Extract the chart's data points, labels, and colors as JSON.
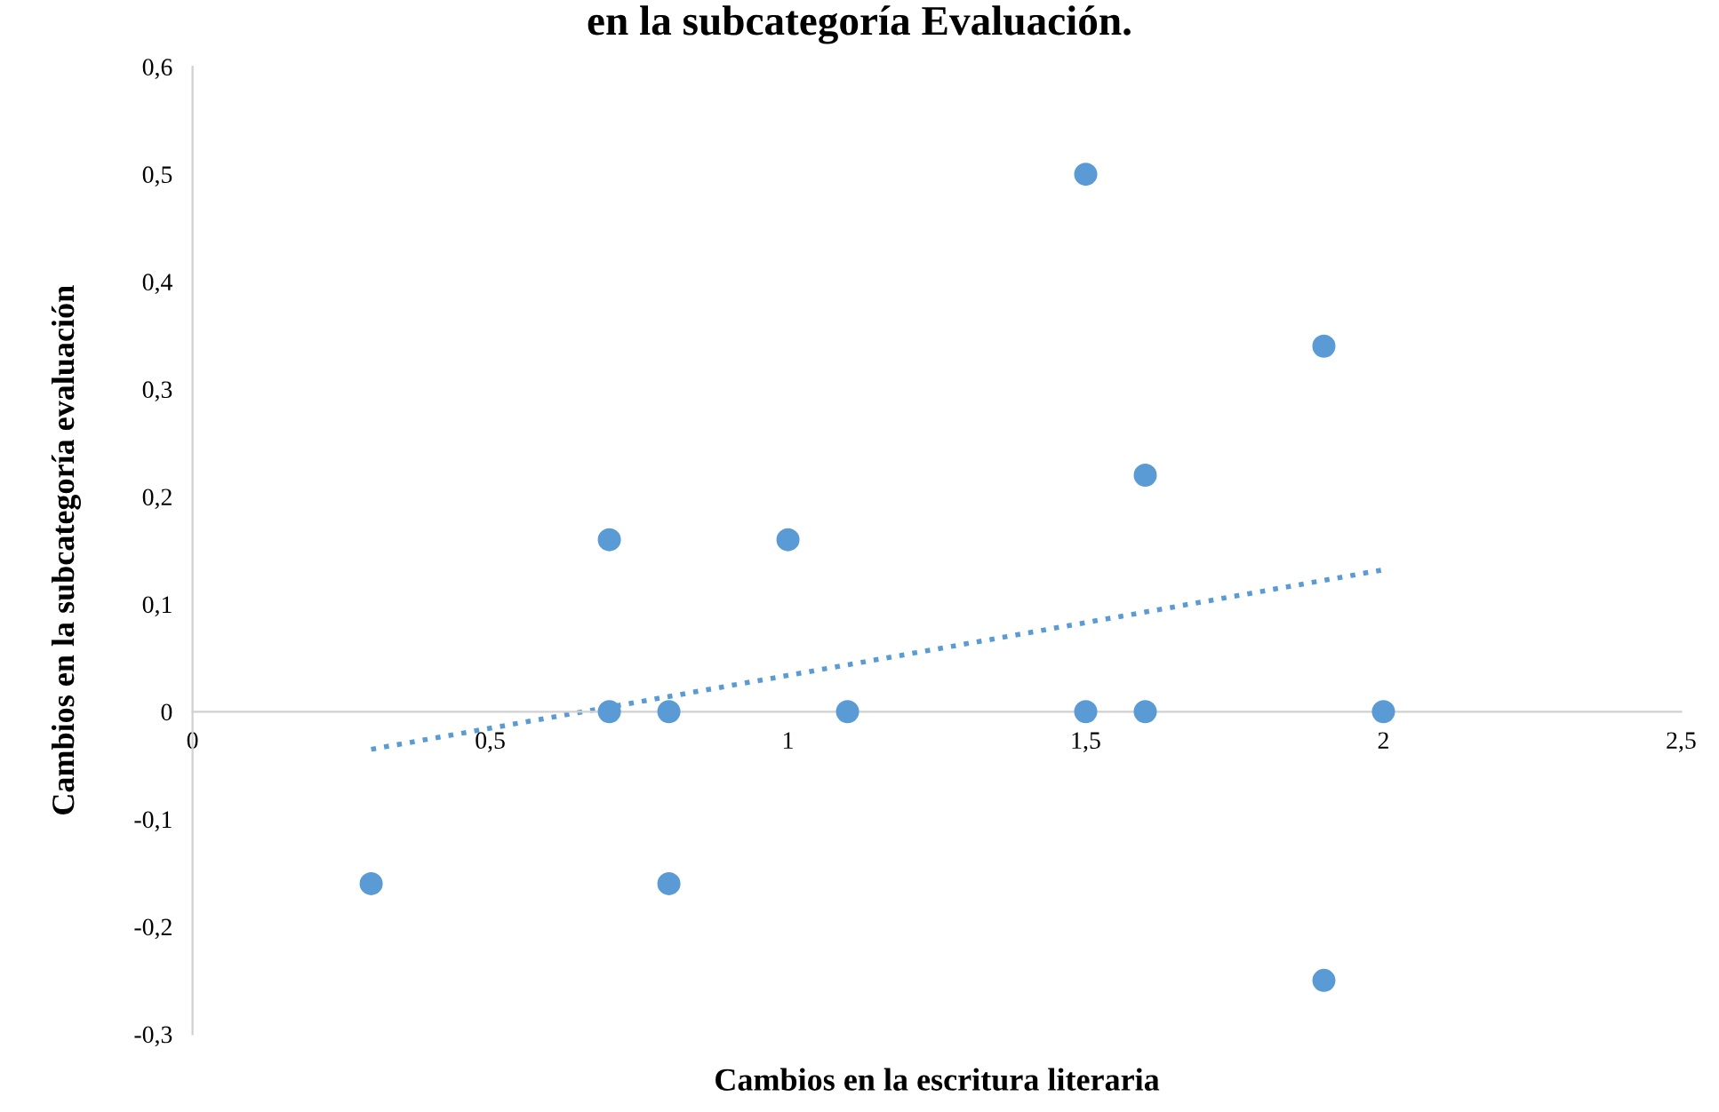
{
  "chart_data": {
    "type": "scatter",
    "title": "en la subcategoría Evaluación.",
    "xlabel": "Cambios en la escritura literaria",
    "ylabel": "Cambios en la subcategoría evaluación",
    "series": [
      {
        "color": "#5b9bd5",
        "marker": "circle",
        "x": [
          0.3,
          0.7,
          0.7,
          0.8,
          0.8,
          1.0,
          1.1,
          1.5,
          1.5,
          1.6,
          1.6,
          1.9,
          1.9,
          2.0
        ],
        "values": [
          -0.16,
          0.16,
          0,
          0,
          -0.16,
          0.16,
          0,
          0.5,
          0,
          0.22,
          0,
          0.34,
          -0.25,
          0
        ]
      },
      {
        "type": "line",
        "color": "#5b9bd5",
        "line_style": "dotted",
        "marker": "none",
        "x": [
          0.3,
          2.0
        ],
        "values": [
          -0.035,
          0.132
        ]
      }
    ],
    "xlim": [
      0,
      2.5
    ],
    "ylim": [
      -0.3,
      0.6
    ],
    "xticks": [
      0,
      {
        "value": 0.5,
        "label": "0,5"
      },
      1,
      {
        "value": 1.5,
        "label": "1,5"
      },
      2,
      {
        "value": 2.5,
        "label": "2,5"
      }
    ],
    "yticks": [
      {
        "value": -0.3,
        "label": "-0,3"
      },
      {
        "value": -0.2,
        "label": "-0,2"
      },
      {
        "value": -0.1,
        "label": "-0,1"
      },
      0,
      {
        "value": 0.1,
        "label": "0,1"
      },
      {
        "value": 0.2,
        "label": "0,2"
      },
      {
        "value": 0.3,
        "label": "0,3"
      },
      {
        "value": 0.4,
        "label": "0,4"
      },
      {
        "value": 0.5,
        "label": "0,5"
      },
      {
        "value": 0.6,
        "label": "0,6"
      }
    ],
    "grid": false,
    "legend": false
  }
}
